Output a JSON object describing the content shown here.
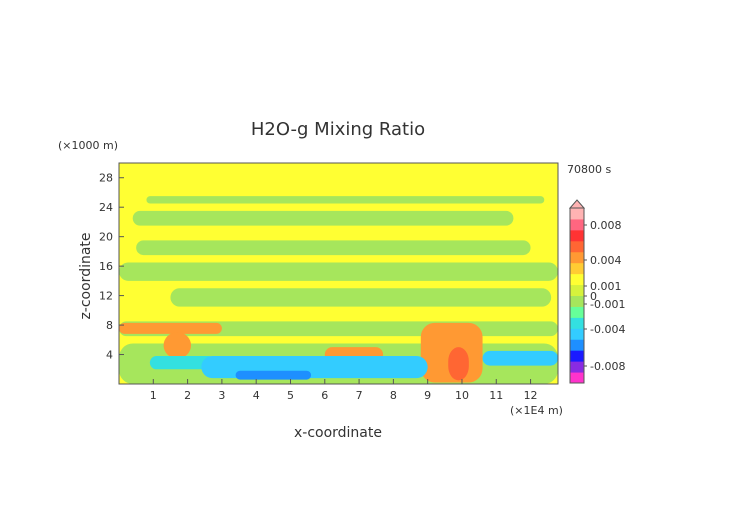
{
  "chart_data": {
    "type": "heatmap",
    "title": "H2O-g Mixing Ratio",
    "time_label": "70800 s",
    "xlabel": "x-coordinate",
    "ylabel": "z-coordinate",
    "x_unit": "(×1E4 m)",
    "y_unit": "(×1000 m)",
    "x_ticks": [
      "1",
      "2",
      "3",
      "4",
      "5",
      "6",
      "7",
      "8",
      "9",
      "10",
      "11",
      "12"
    ],
    "y_ticks": [
      "4",
      "8",
      "12",
      "16",
      "20",
      "24",
      "28"
    ],
    "xlim": [
      0,
      12.8
    ],
    "ylim": [
      0,
      30
    ],
    "colorbar": {
      "labels": [
        "0.008",
        "0.004",
        "0.001",
        "0",
        "-0.001",
        "-0.004",
        "-0.008"
      ],
      "label_values": [
        0.008,
        0.004,
        0.001,
        0,
        -0.001,
        -0.004,
        -0.008
      ],
      "colors": [
        "#ff33cc",
        "#8a2be2",
        "#1a1aff",
        "#1e8fff",
        "#33ccff",
        "#33e0e0",
        "#66ff99",
        "#a6e65c",
        "#d6f23c",
        "#ffff33",
        "#ffcc33",
        "#ff9933",
        "#ff6633",
        "#ff3333",
        "#ff6680",
        "#ffb3b3"
      ]
    },
    "regions": [
      {
        "level": "slightly negative",
        "x": [
          0.0,
          12.8
        ],
        "z": [
          0,
          30
        ],
        "color": "#ffff33"
      },
      {
        "level": "near zero",
        "x": [
          0.8,
          12.4
        ],
        "z": [
          24.5,
          25.5
        ],
        "color": "#a6e65c"
      },
      {
        "level": "near zero",
        "x": [
          0.4,
          11.5
        ],
        "z": [
          21.5,
          23.5
        ],
        "color": "#a6e65c"
      },
      {
        "level": "near zero",
        "x": [
          0.5,
          12.0
        ],
        "z": [
          17.5,
          19.5
        ],
        "color": "#a6e65c"
      },
      {
        "level": "near zero",
        "x": [
          0.0,
          12.8
        ],
        "z": [
          14.0,
          16.5
        ],
        "color": "#a6e65c"
      },
      {
        "level": "near zero",
        "x": [
          1.5,
          12.6
        ],
        "z": [
          10.5,
          13.0
        ],
        "color": "#a6e65c"
      },
      {
        "level": "near zero",
        "x": [
          0.0,
          12.8
        ],
        "z": [
          6.5,
          8.5
        ],
        "color": "#a6e65c"
      },
      {
        "level": "near zero",
        "x": [
          0.0,
          12.8
        ],
        "z": [
          0,
          5.5
        ],
        "color": "#a6e65c"
      },
      {
        "level": "positive",
        "x": [
          0.0,
          3.0
        ],
        "z": [
          6.8,
          8.3
        ],
        "color": "#ff9933"
      },
      {
        "level": "positive",
        "x": [
          1.3,
          2.1
        ],
        "z": [
          3.5,
          7.0
        ],
        "color": "#ff9933"
      },
      {
        "level": "positive",
        "x": [
          6.0,
          7.7
        ],
        "z": [
          3.0,
          5.0
        ],
        "color": "#ff9933"
      },
      {
        "level": "positive",
        "x": [
          8.8,
          10.6
        ],
        "z": [
          0.2,
          8.3
        ],
        "color": "#ff9933"
      },
      {
        "level": "positive",
        "x": [
          9.6,
          10.2
        ],
        "z": [
          0.5,
          5.0
        ],
        "color": "#ff6633"
      },
      {
        "level": "negative",
        "x": [
          0.9,
          2.8
        ],
        "z": [
          2.0,
          3.8
        ],
        "color": "#33e0e0"
      },
      {
        "level": "negative",
        "x": [
          2.4,
          9.0
        ],
        "z": [
          0.8,
          3.8
        ],
        "color": "#33ccff"
      },
      {
        "level": "negative",
        "x": [
          3.4,
          5.6
        ],
        "z": [
          0.6,
          1.8
        ],
        "color": "#1e8fff"
      },
      {
        "level": "negative",
        "x": [
          10.6,
          12.8
        ],
        "z": [
          2.5,
          4.5
        ],
        "color": "#33ccff"
      }
    ]
  }
}
